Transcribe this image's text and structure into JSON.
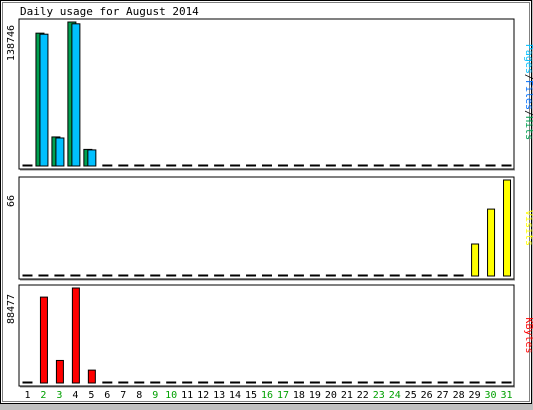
{
  "chart_data": {
    "type": "bar",
    "title": "Daily usage for August 2014",
    "days": [
      "1",
      "2",
      "3",
      "4",
      "5",
      "6",
      "7",
      "8",
      "9",
      "10",
      "11",
      "12",
      "13",
      "14",
      "15",
      "16",
      "17",
      "18",
      "19",
      "20",
      "21",
      "22",
      "23",
      "24",
      "25",
      "26",
      "27",
      "28",
      "29",
      "30",
      "31"
    ],
    "weekend_days": [
      "2",
      "3",
      "9",
      "10",
      "16",
      "17",
      "23",
      "24",
      "30",
      "31"
    ],
    "weekend_color": "#00a000",
    "weekday_color": "#000000",
    "panels": [
      {
        "id": "pages-files-hits",
        "max_label": "138746",
        "ymax": 138746,
        "legend": [
          {
            "text": "Pages",
            "color": "#00c0ff"
          },
          {
            "text": "/",
            "color": "#000000"
          },
          {
            "text": "Files",
            "color": "#0070ff"
          },
          {
            "text": "/",
            "color": "#000000"
          },
          {
            "text": "Hits",
            "color": "#00a050"
          }
        ],
        "series": [
          {
            "name": "Hits",
            "color": "#00a050",
            "values": [
              0,
              128000,
              28000,
              138746,
              16000,
              0,
              0,
              0,
              0,
              0,
              0,
              0,
              0,
              0,
              0,
              0,
              0,
              0,
              0,
              0,
              0,
              0,
              0,
              0,
              0,
              0,
              0,
              0,
              0,
              0,
              0
            ]
          },
          {
            "name": "Files",
            "color": "#00c0ff",
            "values": [
              0,
              127000,
              27000,
              137000,
              15500,
              0,
              0,
              0,
              0,
              0,
              0,
              0,
              0,
              0,
              0,
              0,
              0,
              0,
              0,
              0,
              0,
              0,
              0,
              0,
              0,
              0,
              0,
              0,
              0,
              0,
              0
            ]
          }
        ]
      },
      {
        "id": "visits",
        "max_label": "66",
        "ymax": 66,
        "legend": [
          {
            "text": "Visits",
            "color": "#ffff00"
          }
        ],
        "series": [
          {
            "name": "Visits",
            "color": "#ffff00",
            "values": [
              0,
              0,
              0,
              0,
              0,
              0,
              0,
              0,
              0,
              0,
              0,
              0,
              0,
              0,
              0,
              0,
              0,
              0,
              0,
              0,
              0,
              0,
              0,
              0,
              0,
              0,
              0,
              0,
              22,
              46,
              66
            ]
          }
        ]
      },
      {
        "id": "kbytes",
        "max_label": "88477",
        "ymax": 88477,
        "legend": [
          {
            "text": "KBytes",
            "color": "#ff0000"
          }
        ],
        "series": [
          {
            "name": "KBytes",
            "color": "#ff0000",
            "values": [
              0,
              80000,
              21000,
              88477,
              12000,
              0,
              0,
              0,
              0,
              0,
              0,
              0,
              0,
              0,
              0,
              0,
              0,
              0,
              0,
              0,
              0,
              0,
              0,
              0,
              0,
              0,
              0,
              0,
              0,
              0,
              0
            ]
          }
        ]
      }
    ]
  }
}
